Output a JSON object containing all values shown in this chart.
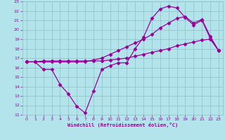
{
  "xlabel": "Windchill (Refroidissement éolien,°C)",
  "bg_color": "#b3e4ec",
  "grid_color": "#8fbfc8",
  "line_color": "#990099",
  "xlim": [
    -0.5,
    23.5
  ],
  "ylim": [
    11,
    23
  ],
  "xticks": [
    0,
    1,
    2,
    3,
    4,
    5,
    6,
    7,
    8,
    9,
    10,
    11,
    12,
    13,
    14,
    15,
    16,
    17,
    18,
    19,
    20,
    21,
    22,
    23
  ],
  "yticks": [
    11,
    12,
    13,
    14,
    15,
    16,
    17,
    18,
    19,
    20,
    21,
    22,
    23
  ],
  "line1_x": [
    0,
    1,
    2,
    3,
    4,
    5,
    6,
    7,
    8,
    9,
    10,
    11,
    12,
    13,
    14,
    15,
    16,
    17,
    18,
    19,
    20,
    21,
    22,
    23
  ],
  "line1_y": [
    16.6,
    16.6,
    15.8,
    15.8,
    14.2,
    13.2,
    11.9,
    11.2,
    13.5,
    15.8,
    16.2,
    16.5,
    16.5,
    18.0,
    19.2,
    21.2,
    22.2,
    22.5,
    22.3,
    21.3,
    20.5,
    21.0,
    19.1,
    17.8
  ],
  "line2_x": [
    0,
    1,
    2,
    3,
    4,
    5,
    6,
    7,
    8,
    9,
    10,
    11,
    12,
    13,
    14,
    15,
    16,
    17,
    18,
    19,
    20,
    21,
    22,
    23
  ],
  "line2_y": [
    16.6,
    16.6,
    16.7,
    16.7,
    16.7,
    16.7,
    16.7,
    16.7,
    16.7,
    16.7,
    16.8,
    16.9,
    17.0,
    17.2,
    17.4,
    17.6,
    17.8,
    18.0,
    18.3,
    18.5,
    18.7,
    18.9,
    19.0,
    17.8
  ],
  "line3_x": [
    0,
    1,
    2,
    3,
    4,
    5,
    6,
    7,
    8,
    9,
    10,
    11,
    12,
    13,
    14,
    15,
    16,
    17,
    18,
    19,
    20,
    21,
    22,
    23
  ],
  "line3_y": [
    16.6,
    16.6,
    16.6,
    16.6,
    16.6,
    16.6,
    16.6,
    16.6,
    16.8,
    17.0,
    17.4,
    17.8,
    18.2,
    18.6,
    19.0,
    19.5,
    20.2,
    20.7,
    21.2,
    21.4,
    20.7,
    21.1,
    19.3,
    17.8
  ],
  "marker": "D",
  "markersize": 2.5,
  "linewidth": 0.9
}
